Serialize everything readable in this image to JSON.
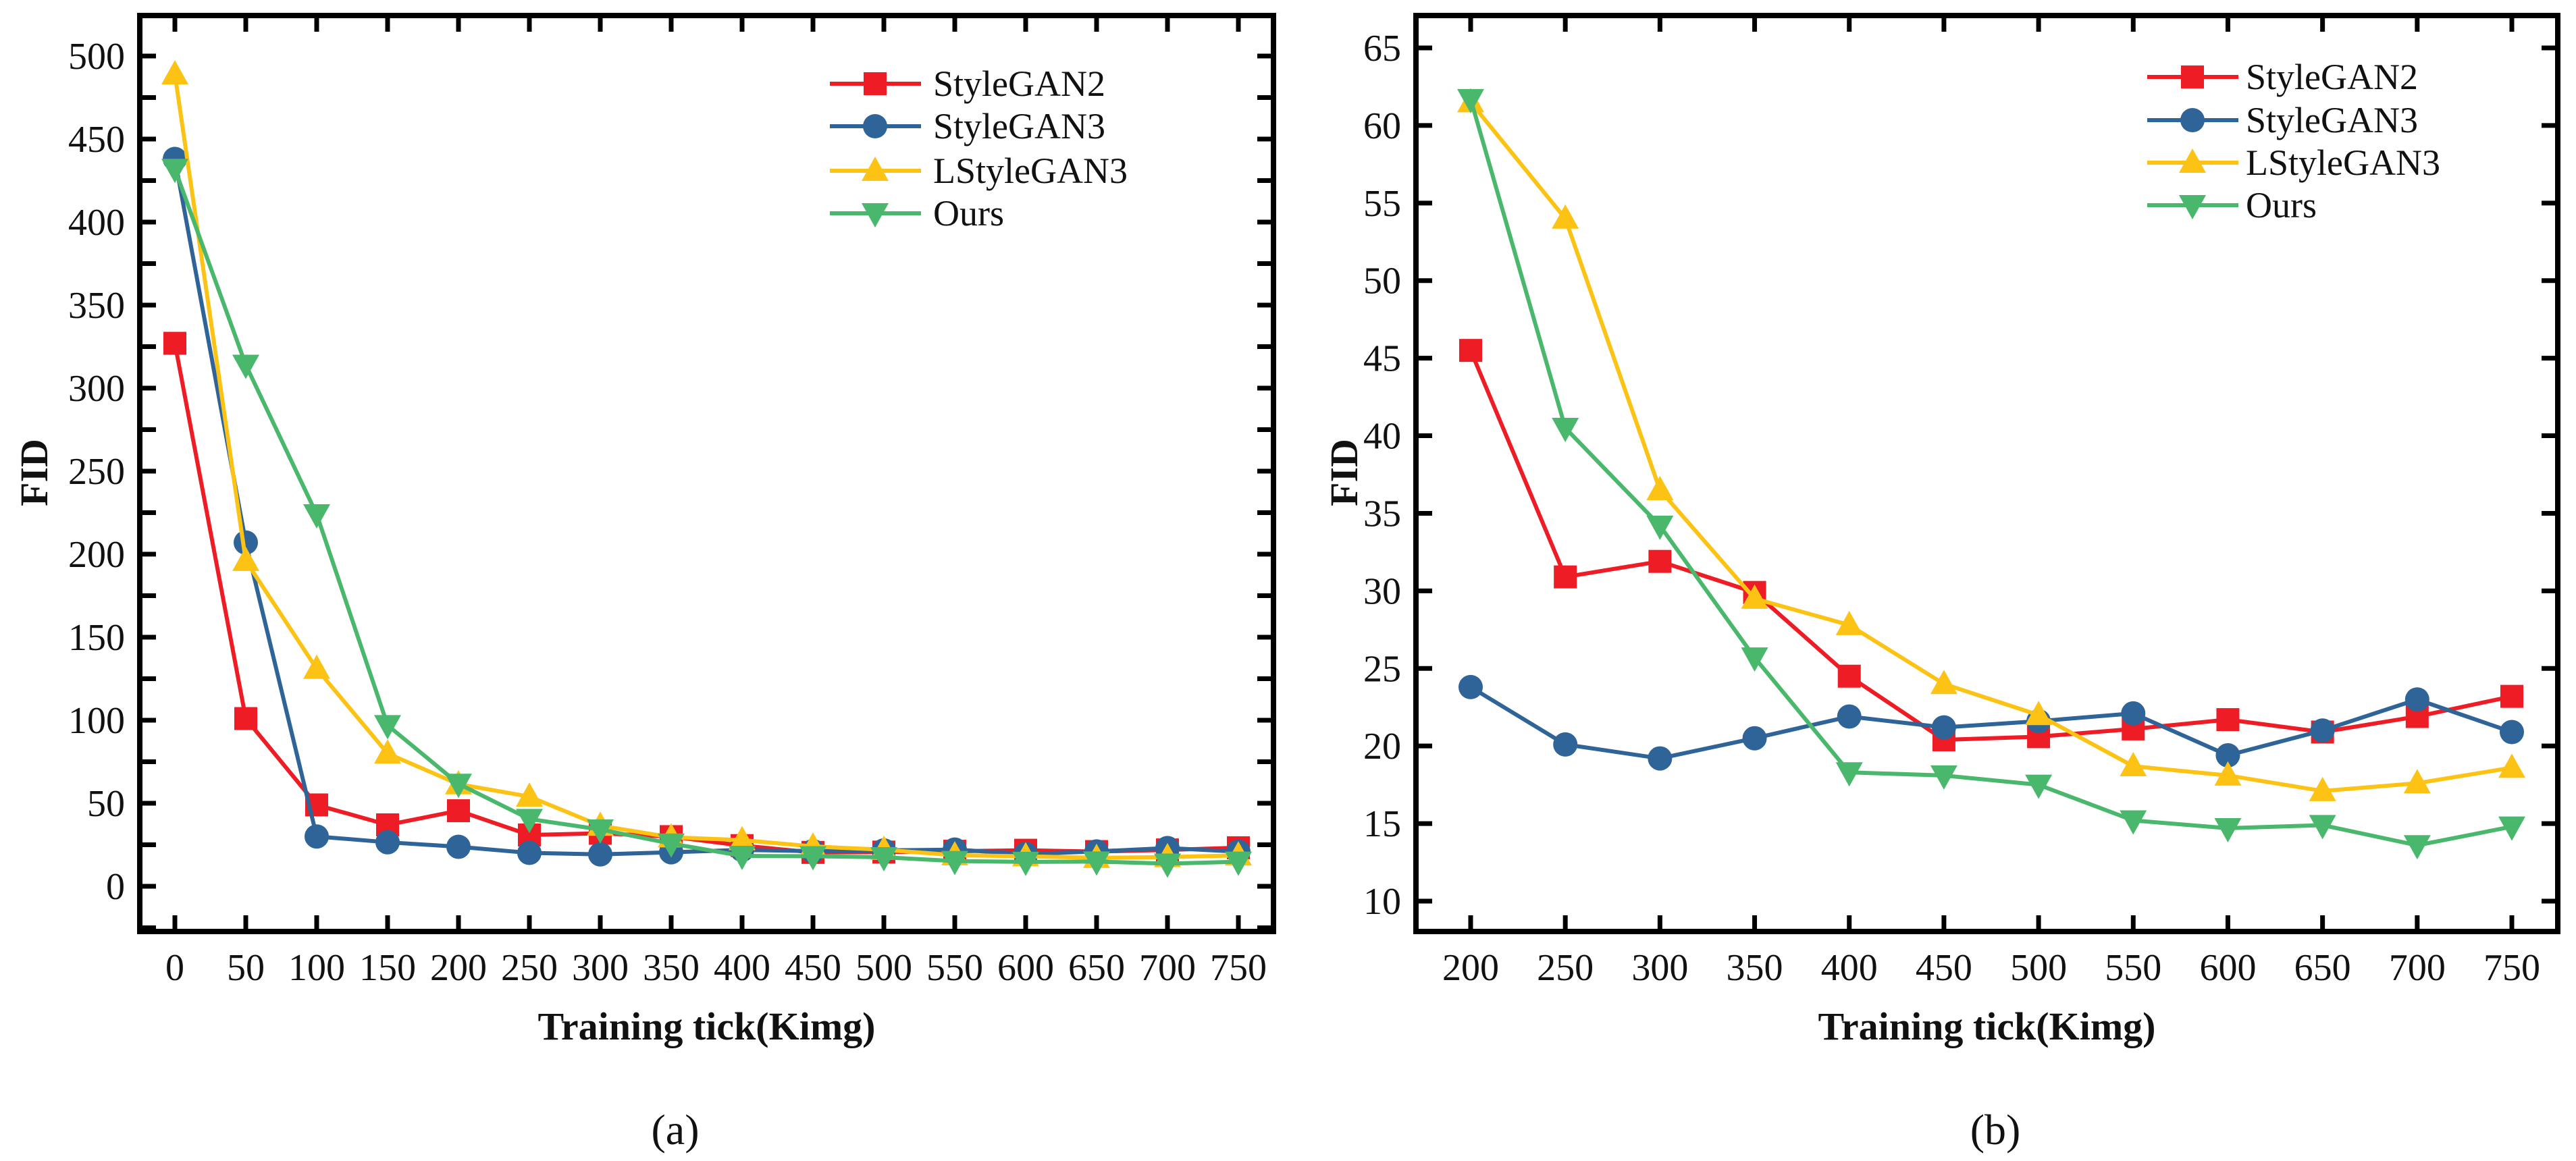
{
  "colors": {
    "StyleGAN2": "#ee1c25",
    "StyleGAN3": "#2f6498",
    "LStyleGAN3": "#fcc315",
    "Ours": "#4ab86c"
  },
  "chart_data": [
    {
      "type": "line",
      "caption": "(a)",
      "xlabel": "Training tick(Kimg)",
      "ylabel": "FID",
      "xlim": [
        0,
        750
      ],
      "ylim": [
        -25,
        525
      ],
      "xticks": [
        0,
        50,
        100,
        150,
        200,
        250,
        300,
        350,
        400,
        450,
        500,
        550,
        600,
        650,
        700,
        750
      ],
      "yticks": [
        0,
        50,
        100,
        150,
        200,
        250,
        300,
        350,
        400,
        450,
        500
      ],
      "grid": false,
      "legend": "top-right",
      "x": [
        0,
        50,
        100,
        150,
        200,
        250,
        300,
        350,
        400,
        450,
        500,
        550,
        600,
        650,
        700,
        750
      ],
      "series": [
        {
          "name": "StyleGAN2",
          "marker": "square",
          "values": [
            327,
            101,
            49,
            37,
            45.5,
            30.9,
            31.9,
            29.9,
            24.5,
            20.4,
            20.6,
            21.1,
            21.7,
            20.9,
            21.9,
            23.2
          ]
        },
        {
          "name": "StyleGAN3",
          "marker": "circle",
          "values": [
            438,
            207,
            30,
            26.5,
            23.8,
            20.1,
            19.2,
            20.5,
            21.9,
            21.2,
            21.6,
            22.1,
            19.4,
            21.0,
            23.0,
            20.9
          ]
        },
        {
          "name": "LStyleGAN3",
          "marker": "triangle-up",
          "values": [
            489,
            196,
            131,
            80,
            61.5,
            54,
            36.5,
            29.5,
            27.8,
            24,
            22,
            18.7,
            18.1,
            17.1,
            17.6,
            18.6
          ]
        },
        {
          "name": "Ours",
          "marker": "triangle-down",
          "values": [
            432,
            314,
            224,
            97,
            61.7,
            40.5,
            34.2,
            25.7,
            18.3,
            18.1,
            17.5,
            15.2,
            14.7,
            14.9,
            13.6,
            14.8
          ]
        }
      ]
    },
    {
      "type": "line",
      "caption": "(b)",
      "xlabel": "Training tick(Kimg)",
      "ylabel": "FID",
      "xlim": [
        200,
        750
      ],
      "ylim": [
        8,
        66.5
      ],
      "xticks": [
        200,
        250,
        300,
        350,
        400,
        450,
        500,
        550,
        600,
        650,
        700,
        750
      ],
      "yticks": [
        10,
        15,
        20,
        25,
        30,
        35,
        40,
        45,
        50,
        55,
        60,
        65
      ],
      "grid": false,
      "legend": "top-right",
      "x": [
        200,
        250,
        300,
        350,
        400,
        450,
        500,
        550,
        600,
        650,
        700,
        750
      ],
      "series": [
        {
          "name": "StyleGAN2",
          "marker": "square",
          "values": [
            45.5,
            30.9,
            31.9,
            29.9,
            24.5,
            20.4,
            20.6,
            21.1,
            21.7,
            20.9,
            21.9,
            23.2
          ]
        },
        {
          "name": "StyleGAN3",
          "marker": "circle",
          "values": [
            23.8,
            20.1,
            19.2,
            20.5,
            21.9,
            21.2,
            21.6,
            22.1,
            19.4,
            21.0,
            23.0,
            20.9
          ]
        },
        {
          "name": "LStyleGAN3",
          "marker": "triangle-up",
          "values": [
            61.5,
            54,
            36.5,
            29.5,
            27.8,
            24,
            22,
            18.7,
            18.1,
            17.1,
            17.6,
            18.6
          ]
        },
        {
          "name": "Ours",
          "marker": "triangle-down",
          "values": [
            61.7,
            40.5,
            34.2,
            25.7,
            18.3,
            18.1,
            17.5,
            15.2,
            14.7,
            14.9,
            13.6,
            14.8
          ]
        }
      ]
    }
  ]
}
